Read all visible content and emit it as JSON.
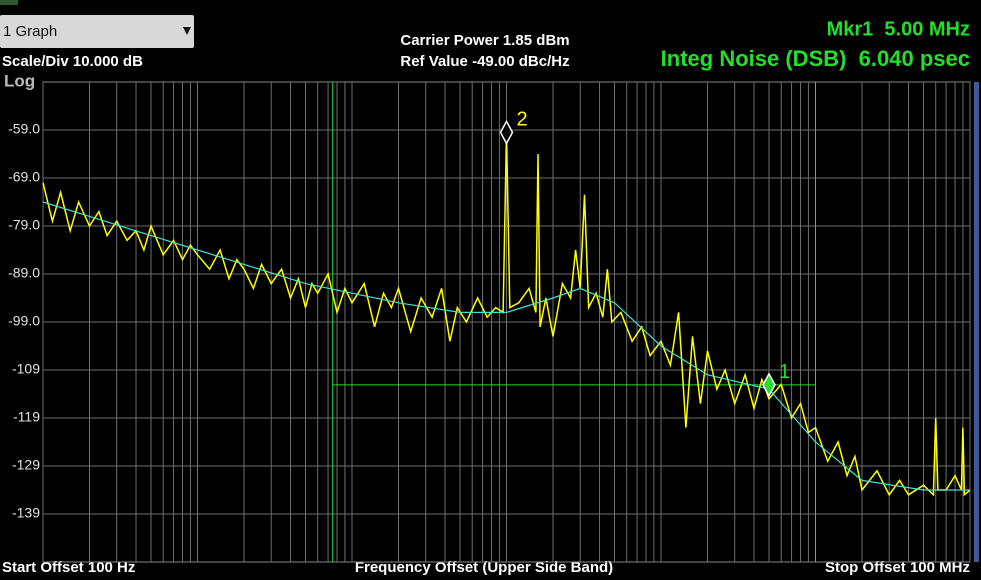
{
  "chart_data": {
    "type": "line",
    "dropdown": "1 Graph",
    "scale_label": "Scale/Div 10.000 dB",
    "scale_type": "Log",
    "carrier_power": "Carrier Power 1.85 dBm",
    "ref_value": "Ref Value -49.00 dBc/Hz",
    "marker_readout": "Mkr1  5.00 MHz",
    "integ_noise": "Integ Noise (DSB)  6.040 psec",
    "x_start_label": "Start Offset 100 Hz",
    "xlabel": "Frequency Offset (Upper Side Band)",
    "x_stop_label": "Stop Offset 100 MHz",
    "xscale": "log",
    "xlim": [
      100,
      100000000
    ],
    "ylim": [
      -149,
      -49
    ],
    "grid": true,
    "xticks": [
      100,
      200,
      300,
      400,
      500,
      600,
      700,
      800,
      900,
      1000,
      2000,
      3000,
      4000,
      5000,
      6000,
      7000,
      8000,
      9000,
      10000,
      20000,
      30000,
      40000,
      50000,
      60000,
      70000,
      80000,
      90000,
      100000,
      200000,
      300000,
      400000,
      500000,
      600000,
      700000,
      800000,
      900000,
      1000000,
      2000000,
      3000000,
      4000000,
      5000000,
      6000000,
      7000000,
      8000000,
      9000000,
      10000000,
      20000000,
      30000000,
      40000000,
      50000000,
      60000000,
      70000000,
      80000000,
      90000000,
      100000000
    ],
    "yticks": [
      {
        "value": -59,
        "label": "-59.0"
      },
      {
        "value": -69,
        "label": "-69.0"
      },
      {
        "value": -79,
        "label": "-79.0"
      },
      {
        "value": -89,
        "label": "-89.0"
      },
      {
        "value": -99,
        "label": "-99.0"
      },
      -109,
      -119,
      -129,
      -139
    ],
    "integration": {
      "start": 7500,
      "stop": 10000000,
      "level": -112.1,
      "color": "#22e02a"
    },
    "series": [
      {
        "color": "#ffff00",
        "x": [
          100,
          115,
          130,
          150,
          170,
          200,
          230,
          260,
          300,
          350,
          400,
          450,
          500,
          600,
          700,
          800,
          900,
          1000,
          1200,
          1400,
          1600,
          1800,
          2000,
          2300,
          2600,
          3000,
          3500,
          4000,
          4500,
          5000,
          5500,
          6000,
          7000,
          8000,
          9000,
          10000,
          12000,
          14000,
          16000,
          18000,
          20000,
          24000,
          28000,
          33000,
          38000,
          43000,
          48000,
          55000,
          65000,
          75000,
          85000,
          95000,
          100000,
          105000,
          120000,
          140000,
          155000,
          160000,
          165000,
          180000,
          200000,
          230000,
          260000,
          280000,
          300000,
          320000,
          340000,
          380000,
          420000,
          450000,
          480000,
          550000,
          650000,
          750000,
          850000,
          1000000,
          1150000,
          1300000,
          1450000,
          1600000,
          1800000,
          2000000,
          2300000,
          2600000,
          3000000,
          3500000,
          4000000,
          4500000,
          5000000,
          6000000,
          7000000,
          8000000,
          9000000,
          10000000,
          12000000,
          14000000,
          16000000,
          18000000,
          20000000,
          25000000,
          30000000,
          35000000,
          40000000,
          50000000,
          58000000,
          60000000,
          62000000,
          70000000,
          80000000,
          88000000,
          90000000,
          92000000,
          100000000
        ],
        "values": [
          -70,
          -78,
          -72,
          -80,
          -74,
          -79,
          -76,
          -81,
          -78,
          -82,
          -80,
          -84,
          -79,
          -85,
          -82,
          -86,
          -83,
          -85,
          -88,
          -84,
          -90,
          -86,
          -88,
          -92,
          -87,
          -91,
          -88,
          -94,
          -90,
          -96,
          -91,
          -93,
          -89,
          -97,
          -92,
          -95,
          -91,
          -100,
          -93,
          -96,
          -92,
          -101,
          -94,
          -98,
          -92,
          -103,
          -96,
          -99,
          -94,
          -98,
          -96,
          -97,
          -59.5,
          -96,
          -95,
          -92,
          -97,
          -64,
          -100,
          -94,
          -102,
          -91,
          -94,
          -84,
          -92,
          -72.5,
          -96,
          -93,
          -98,
          -88,
          -99,
          -97,
          -103,
          -100,
          -106,
          -103,
          -108,
          -97,
          -121,
          -102,
          -116,
          -105,
          -113,
          -109,
          -116,
          -110,
          -117,
          -111,
          -115,
          -112,
          -119,
          -116,
          -122,
          -121,
          -128,
          -124,
          -131,
          -127,
          -134,
          -130,
          -135,
          -132,
          -135,
          -133,
          -135,
          -119,
          -134,
          -134,
          -131,
          -134,
          -121,
          -135,
          -134
        ]
      },
      {
        "color": "#40e0d0",
        "x": [
          100,
          200,
          500,
          1000,
          2000,
          5000,
          10000,
          20000,
          50000,
          100000,
          200000,
          300000,
          500000,
          1000000,
          2000000,
          5000000,
          10000000,
          20000000,
          50000000,
          100000000
        ],
        "values": [
          -74,
          -77,
          -81,
          -84,
          -87,
          -91,
          -93,
          -95,
          -97,
          -97,
          -94,
          -92,
          -95,
          -104,
          -110,
          -113,
          -124,
          -132,
          -134,
          -134
        ]
      }
    ],
    "markers": [
      {
        "label": "1",
        "x": 5000000,
        "y": -112.1,
        "color": "#22e02a"
      },
      {
        "label": "2",
        "x": 100000,
        "y": -59.5,
        "color": "#ffffff"
      }
    ]
  }
}
